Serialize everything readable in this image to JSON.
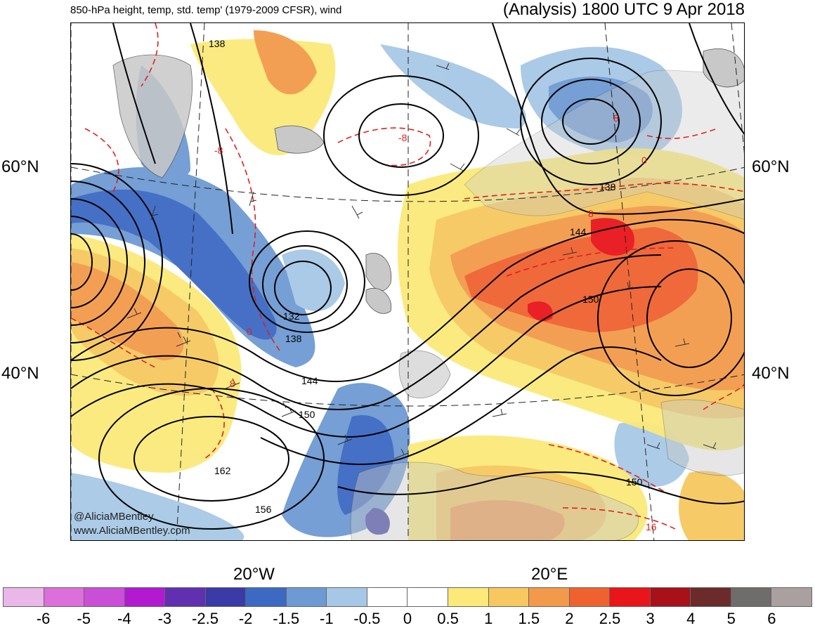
{
  "header": {
    "left_title": "850-hPa height, temp, std. temp' (1979-2009 CFSR), wind",
    "right_title": "(Analysis) 1800 UTC 9 Apr 2018"
  },
  "axes": {
    "lat_labels_left": [
      "60°N",
      "40°N"
    ],
    "lat_labels_right": [
      "60°N",
      "40°N"
    ],
    "lon_labels": [
      "20°W",
      "20°E"
    ]
  },
  "contour_labels": {
    "height": [
      "138",
      "138",
      "144",
      "132",
      "138",
      "144",
      "150",
      "162",
      "156",
      "150",
      "150"
    ],
    "temp": [
      "-8",
      "-8",
      "0",
      "8",
      "8",
      "0",
      "8",
      "16"
    ]
  },
  "credit": {
    "handle": "@AliciaMBentley",
    "site": "www.AliciaMBentley.com"
  },
  "colorbar": {
    "colors": [
      "#e9b8e8",
      "#dc6fd9",
      "#c94fd6",
      "#b21ad0",
      "#6030b0",
      "#3a3aa8",
      "#3c69c2",
      "#6e9ad3",
      "#a6c8e6",
      "#ffffff",
      "#ffffff",
      "#fbe97a",
      "#f6c85f",
      "#f39a4a",
      "#ef6230",
      "#e8151a",
      "#a8101a",
      "#6b2b2b",
      "#6f6c6c",
      "#aaa0a0"
    ],
    "labels": [
      "-6",
      "-5",
      "-4",
      "-3",
      "-2.5",
      "-2",
      "-1.5",
      "-1",
      "-0.5",
      "0",
      "0.5",
      "1",
      "1.5",
      "2",
      "2.5",
      "3",
      "4",
      "5",
      "6"
    ]
  },
  "colors": {
    "land": "#c8c8c8",
    "height_contour": "#000000",
    "temp_contour": "#e0201c"
  }
}
